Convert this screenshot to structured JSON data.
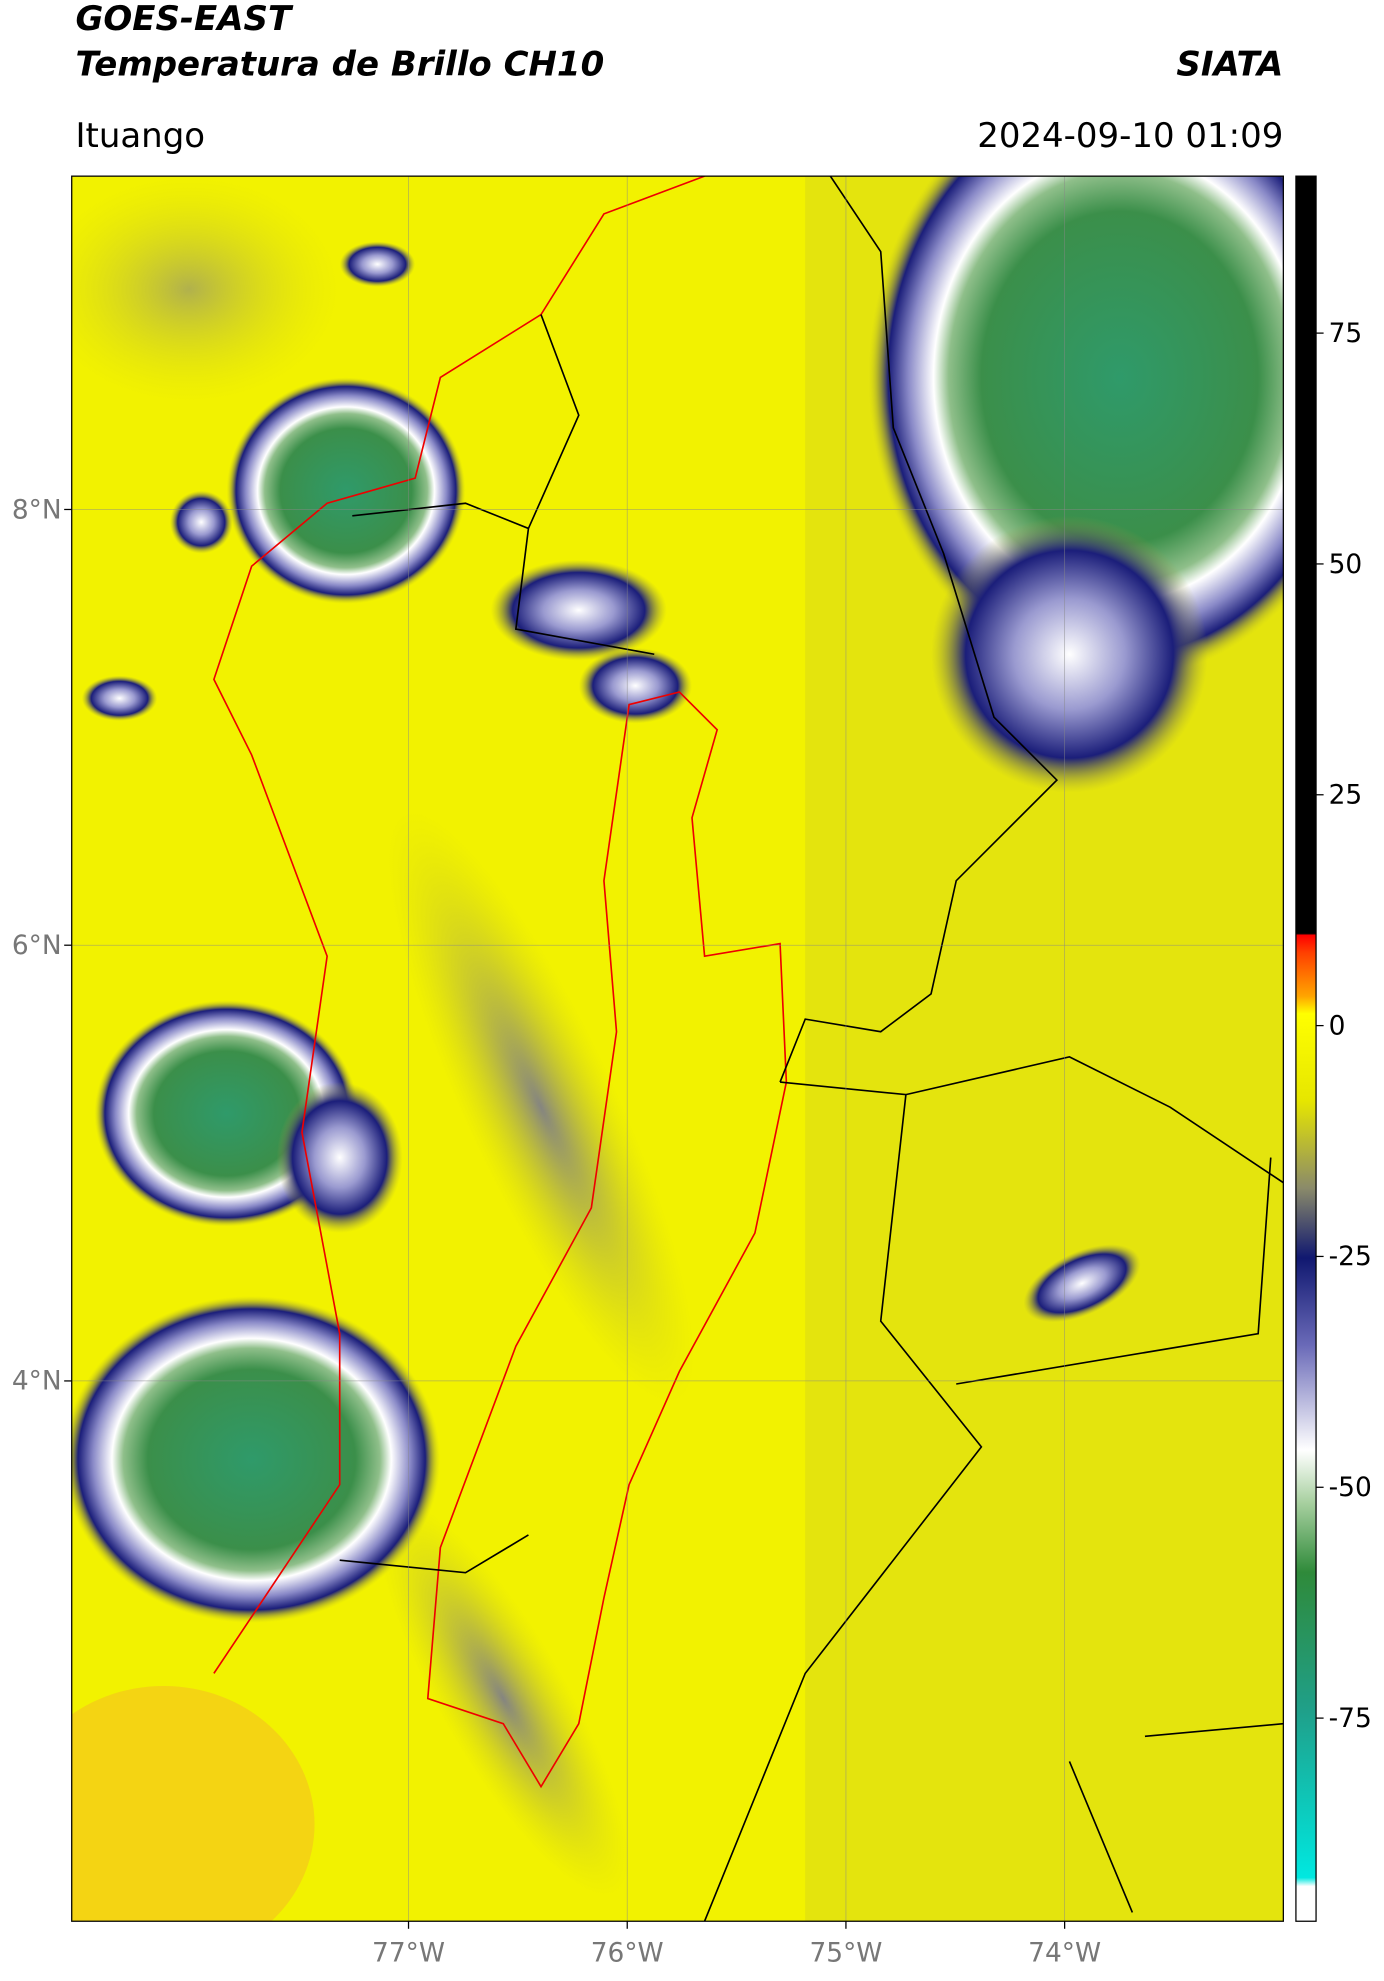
{
  "chart_data": {
    "type": "map",
    "title": "GOES-EAST",
    "subtitle": "Temperatura de Brillo CH10",
    "brand": "SIATA",
    "location": "Ituango",
    "timestamp": "2024-09-10 01:09",
    "xlim": [
      -78.54,
      -73.0
    ],
    "ylim": [
      1.52,
      9.53
    ],
    "xticks": [
      {
        "value": -77,
        "label": "77°W"
      },
      {
        "value": -76,
        "label": "76°W"
      },
      {
        "value": -75,
        "label": "75°W"
      },
      {
        "value": -74,
        "label": "74°W"
      }
    ],
    "yticks": [
      {
        "value": 8,
        "label": "8°N"
      },
      {
        "value": 6,
        "label": "6°N"
      },
      {
        "value": 4,
        "label": "4°N"
      }
    ],
    "grid": true,
    "colorbar": {
      "lim": [
        -97,
        92
      ],
      "ticks": [
        75,
        50,
        25,
        0,
        -25,
        -50,
        -75
      ]
    }
  }
}
